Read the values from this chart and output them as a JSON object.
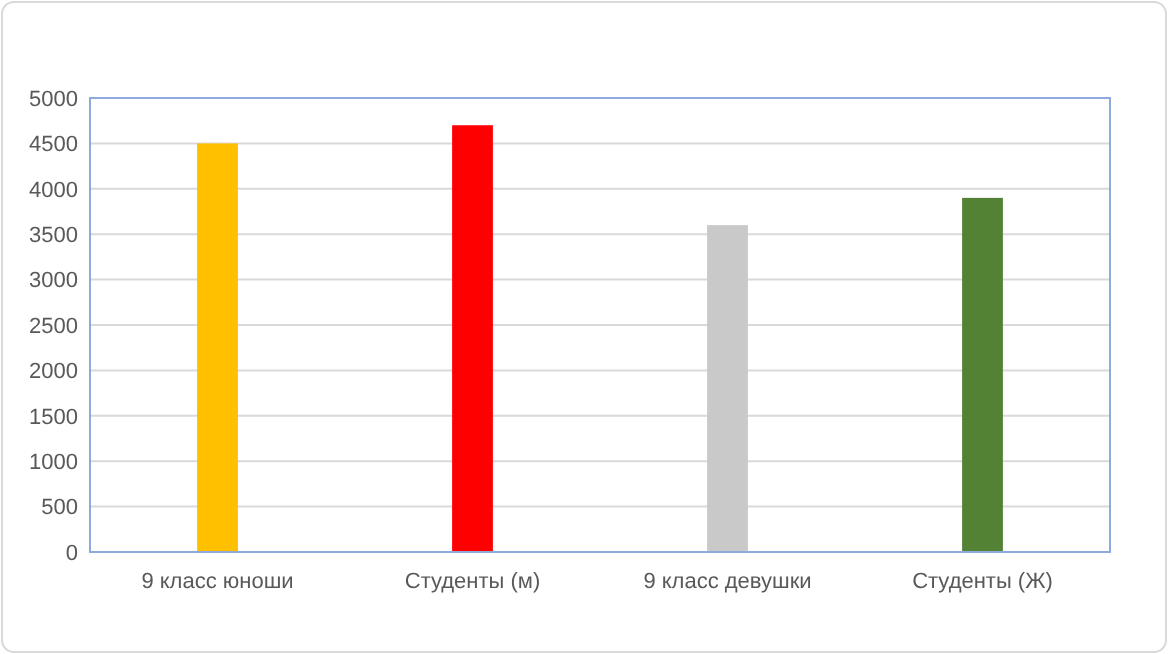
{
  "chart_data": {
    "type": "bar",
    "categories": [
      "9 класс юноши",
      "Студенты (м)",
      "9 класс девушки",
      "Студенты (Ж)"
    ],
    "values": [
      4500,
      4700,
      3600,
      3900
    ],
    "colors": [
      "#ffc000",
      "#ff0000",
      "#c9c9c9",
      "#548235"
    ],
    "ylim": [
      0,
      5000
    ],
    "yticks": [
      0,
      500,
      1000,
      1500,
      2000,
      2500,
      3000,
      3500,
      4000,
      4500,
      5000
    ],
    "grid": "y"
  }
}
